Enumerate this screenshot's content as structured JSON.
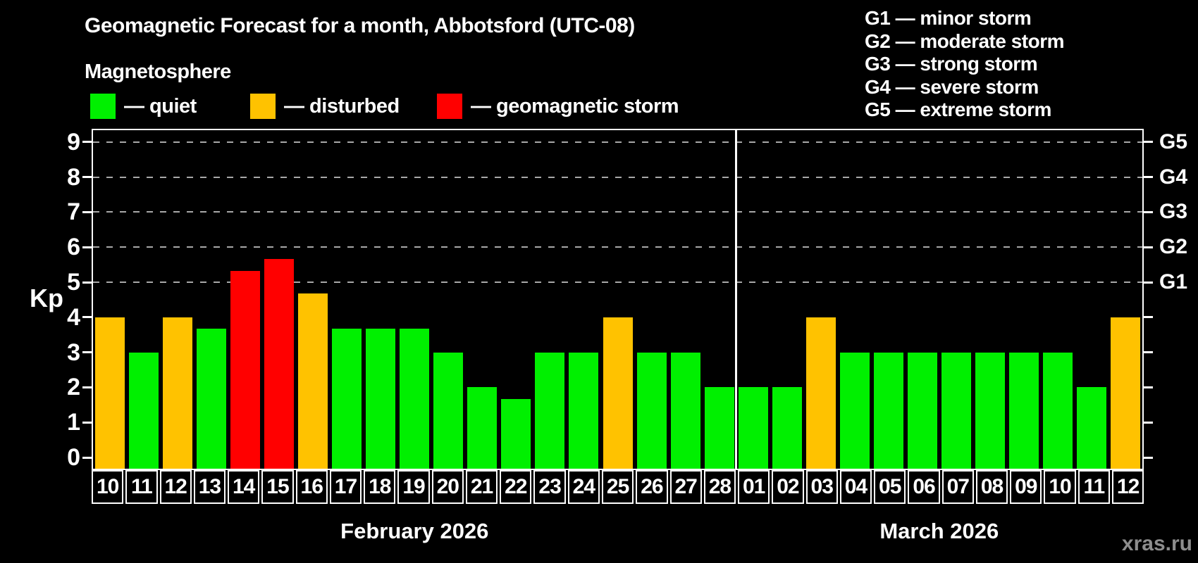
{
  "watermark": "xras.ru",
  "colors": {
    "quiet": "#00f000",
    "disturbed": "#ffc200",
    "storm": "#ff0000",
    "axis": "#ffffff",
    "gridline": "#a8a8a8",
    "background": "#000000",
    "watermark_text": "#8d8d8d"
  },
  "legend": {
    "items": [
      {
        "key": "quiet",
        "label": "— quiet",
        "color": "#00f000"
      },
      {
        "key": "disturbed",
        "label": "— disturbed",
        "color": "#ffc200"
      },
      {
        "key": "storm",
        "label": "— geomagnetic storm",
        "color": "#ff0000"
      }
    ]
  },
  "storm_scale": [
    {
      "level": "G1",
      "label": "G1 — minor storm"
    },
    {
      "level": "G2",
      "label": "G2 — moderate storm"
    },
    {
      "level": "G3",
      "label": "G3 — strong storm"
    },
    {
      "level": "G4",
      "label": "G4 — severe storm"
    },
    {
      "level": "G5",
      "label": "G5 — extreme storm"
    }
  ],
  "chart_data": {
    "type": "bar",
    "title": "Geomagnetic Forecast for a month, Abbotsford (UTC-08)",
    "subtitle": "Magnetosphere",
    "xlabel": "",
    "ylabel": "Kp",
    "ylim": [
      0,
      9.4
    ],
    "grid": true,
    "yticks": [
      0,
      1,
      2,
      3,
      4,
      5,
      6,
      7,
      8,
      9
    ],
    "gridlines_kp": [
      5,
      6,
      7,
      8,
      9
    ],
    "right_axis_labels": [
      {
        "text": "G1",
        "kp": 5
      },
      {
        "text": "G2",
        "kp": 6
      },
      {
        "text": "G3",
        "kp": 7
      },
      {
        "text": "G4",
        "kp": 8
      },
      {
        "text": "G5",
        "kp": 9
      }
    ],
    "months": [
      {
        "label": "February 2026",
        "days": 19
      },
      {
        "label": "March 2026",
        "days": 12
      }
    ],
    "bars": [
      {
        "day": "10",
        "kp": 4,
        "status": "disturbed"
      },
      {
        "day": "11",
        "kp": 3,
        "status": "quiet"
      },
      {
        "day": "12",
        "kp": 4,
        "status": "disturbed"
      },
      {
        "day": "13",
        "kp": 3.67,
        "status": "quiet"
      },
      {
        "day": "14",
        "kp": 5.33,
        "status": "storm"
      },
      {
        "day": "15",
        "kp": 5.67,
        "status": "storm"
      },
      {
        "day": "16",
        "kp": 4.67,
        "status": "disturbed"
      },
      {
        "day": "17",
        "kp": 3.67,
        "status": "quiet"
      },
      {
        "day": "18",
        "kp": 3.67,
        "status": "quiet"
      },
      {
        "day": "19",
        "kp": 3.67,
        "status": "quiet"
      },
      {
        "day": "20",
        "kp": 3,
        "status": "quiet"
      },
      {
        "day": "21",
        "kp": 2,
        "status": "quiet"
      },
      {
        "day": "22",
        "kp": 1.67,
        "status": "quiet"
      },
      {
        "day": "23",
        "kp": 3,
        "status": "quiet"
      },
      {
        "day": "24",
        "kp": 3,
        "status": "quiet"
      },
      {
        "day": "25",
        "kp": 4,
        "status": "disturbed"
      },
      {
        "day": "26",
        "kp": 3,
        "status": "quiet"
      },
      {
        "day": "27",
        "kp": 3,
        "status": "quiet"
      },
      {
        "day": "28",
        "kp": 2,
        "status": "quiet"
      },
      {
        "day": "01",
        "kp": 2,
        "status": "quiet"
      },
      {
        "day": "02",
        "kp": 2,
        "status": "quiet"
      },
      {
        "day": "03",
        "kp": 4,
        "status": "disturbed"
      },
      {
        "day": "04",
        "kp": 3,
        "status": "quiet"
      },
      {
        "day": "05",
        "kp": 3,
        "status": "quiet"
      },
      {
        "day": "06",
        "kp": 3,
        "status": "quiet"
      },
      {
        "day": "07",
        "kp": 3,
        "status": "quiet"
      },
      {
        "day": "08",
        "kp": 3,
        "status": "quiet"
      },
      {
        "day": "09",
        "kp": 3,
        "status": "quiet"
      },
      {
        "day": "10",
        "kp": 3,
        "status": "quiet"
      },
      {
        "day": "11",
        "kp": 2,
        "status": "quiet"
      },
      {
        "day": "12",
        "kp": 4,
        "status": "disturbed"
      }
    ]
  }
}
